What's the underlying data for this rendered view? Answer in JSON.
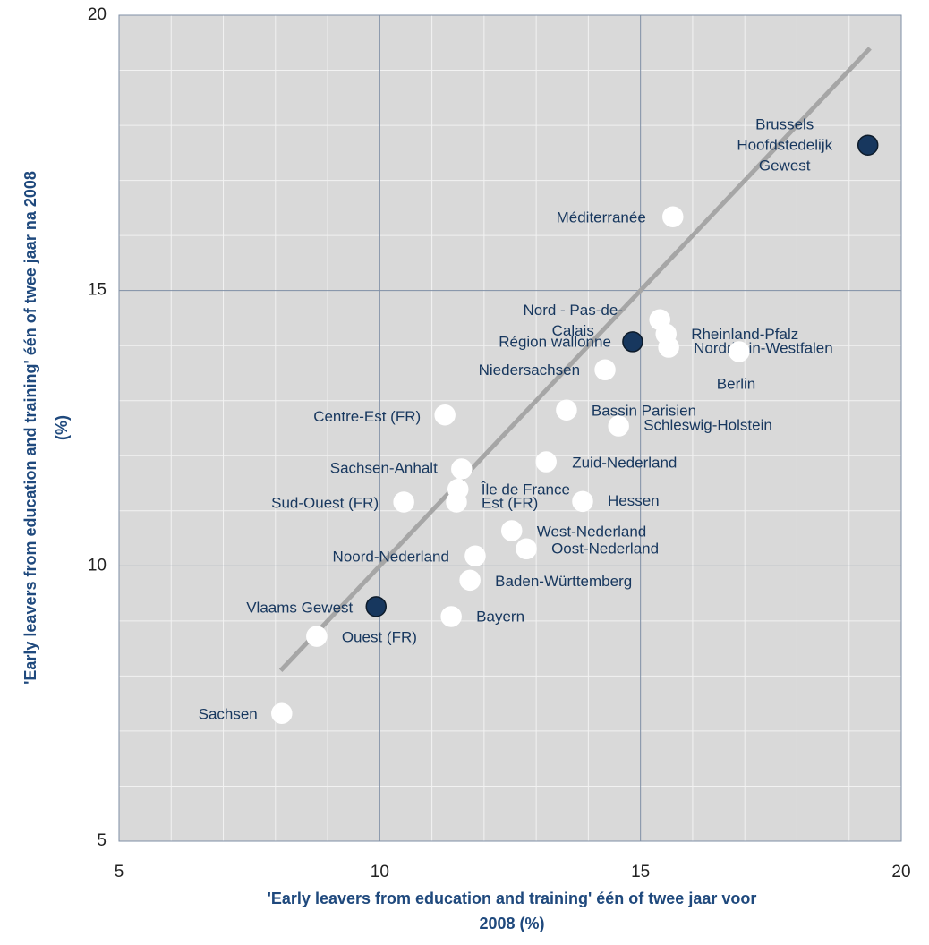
{
  "chart_data": {
    "type": "scatter",
    "xlabel": [
      "'Early leavers from education and training' één of twee jaar voor",
      "2008 (%)"
    ],
    "ylabel": [
      "'Early leavers from education and training' één of twee jaar na  2008",
      "(%)"
    ],
    "xlim": [
      5,
      20
    ],
    "ylim": [
      5,
      20
    ],
    "xticks": [
      5,
      10,
      15,
      20
    ],
    "yticks": [
      5,
      10,
      15,
      20
    ],
    "xminor": [
      6,
      7,
      8,
      9,
      11,
      12,
      13,
      14,
      16,
      17,
      18,
      19
    ],
    "yminor": [
      6,
      7,
      8,
      9,
      11,
      12,
      13,
      14,
      16,
      17,
      18,
      19
    ],
    "grid": true,
    "trendline": {
      "x": [
        8.1,
        19.4
      ],
      "y": [
        8.1,
        19.4
      ],
      "color": "#a6a6a6"
    },
    "points": [
      {
        "label": [
          "Brussels",
          "Hoofdstedelijk",
          "Gewest"
        ],
        "x": 19.36,
        "y": 17.64,
        "color": "#17375e"
      },
      {
        "label": [
          "Méditerranée"
        ],
        "x": 15.62,
        "y": 16.34,
        "color": "#ffffff"
      },
      {
        "label": [
          "Nord - Pas-de-",
          "Calais"
        ],
        "x": 15.37,
        "y": 14.47,
        "color": "#ffffff"
      },
      {
        "label": [
          "Région wallonne"
        ],
        "x": 14.85,
        "y": 14.07,
        "color": "#17375e"
      },
      {
        "label": [
          "Rheinland-Pfalz"
        ],
        "x": 15.49,
        "y": 14.21,
        "color": "#ffffff"
      },
      {
        "label": [
          "Nordrhein-Westfalen"
        ],
        "x": 15.54,
        "y": 13.97,
        "color": "#ffffff"
      },
      {
        "label": [
          "Berlin"
        ],
        "x": 16.89,
        "y": 13.89,
        "color": "#ffffff"
      },
      {
        "label": [
          "Niedersachsen"
        ],
        "x": 14.32,
        "y": 13.56,
        "color": "#ffffff"
      },
      {
        "label": [
          "Bassin Parisien"
        ],
        "x": 13.58,
        "y": 12.83,
        "color": "#ffffff"
      },
      {
        "label": [
          "Schleswig-Holstein"
        ],
        "x": 14.58,
        "y": 12.54,
        "color": "#ffffff"
      },
      {
        "label": [
          "Centre-Est (FR)"
        ],
        "x": 11.25,
        "y": 12.74,
        "color": "#ffffff"
      },
      {
        "label": [
          "Zuid-Nederland"
        ],
        "x": 13.19,
        "y": 11.89,
        "color": "#ffffff"
      },
      {
        "label": [
          "Sachsen-Anhalt"
        ],
        "x": 11.57,
        "y": 11.76,
        "color": "#ffffff"
      },
      {
        "label": [
          "Île de France"
        ],
        "x": 11.5,
        "y": 11.39,
        "color": "#ffffff"
      },
      {
        "label": [
          "Est (FR)"
        ],
        "x": 11.47,
        "y": 11.16,
        "color": "#ffffff"
      },
      {
        "label": [
          "Hessen"
        ],
        "x": 13.89,
        "y": 11.17,
        "color": "#ffffff"
      },
      {
        "label": [
          "Sud-Ouest (FR)"
        ],
        "x": 10.46,
        "y": 11.16,
        "color": "#ffffff"
      },
      {
        "label": [
          "West-Nederland"
        ],
        "x": 12.53,
        "y": 10.64,
        "color": "#ffffff"
      },
      {
        "label": [
          "Oost-Nederland"
        ],
        "x": 12.81,
        "y": 10.31,
        "color": "#ffffff"
      },
      {
        "label": [
          "Noord-Nederland"
        ],
        "x": 11.83,
        "y": 10.18,
        "color": "#ffffff"
      },
      {
        "label": [
          "Baden-Württemberg"
        ],
        "x": 11.73,
        "y": 9.74,
        "color": "#ffffff"
      },
      {
        "label": [
          "Vlaams Gewest"
        ],
        "x": 9.93,
        "y": 9.26,
        "color": "#17375e"
      },
      {
        "label": [
          "Bayern"
        ],
        "x": 11.37,
        "y": 9.08,
        "color": "#ffffff"
      },
      {
        "label": [
          "Ouest (FR)"
        ],
        "x": 8.79,
        "y": 8.72,
        "color": "#ffffff"
      },
      {
        "label": [
          "Sachsen"
        ],
        "x": 8.12,
        "y": 7.32,
        "color": "#ffffff"
      }
    ]
  }
}
